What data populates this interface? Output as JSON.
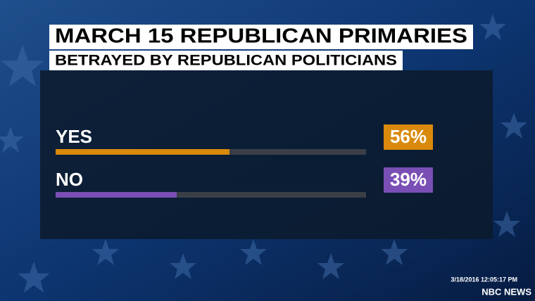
{
  "chart_data": {
    "type": "bar",
    "title": "MARCH 15 REPUBLICAN PRIMARIES",
    "subtitle": "BETRAYED BY REPUBLICAN POLITICIANS",
    "categories": [
      "YES",
      "NO"
    ],
    "values": [
      56,
      39
    ],
    "value_labels": [
      "56%",
      "39%"
    ],
    "colors": [
      "#d98a0c",
      "#7a4fb5"
    ],
    "xlim": [
      0,
      100
    ],
    "timestamp": "3/18/2016 12:05:17 PM",
    "source": "NBC NEWS"
  }
}
